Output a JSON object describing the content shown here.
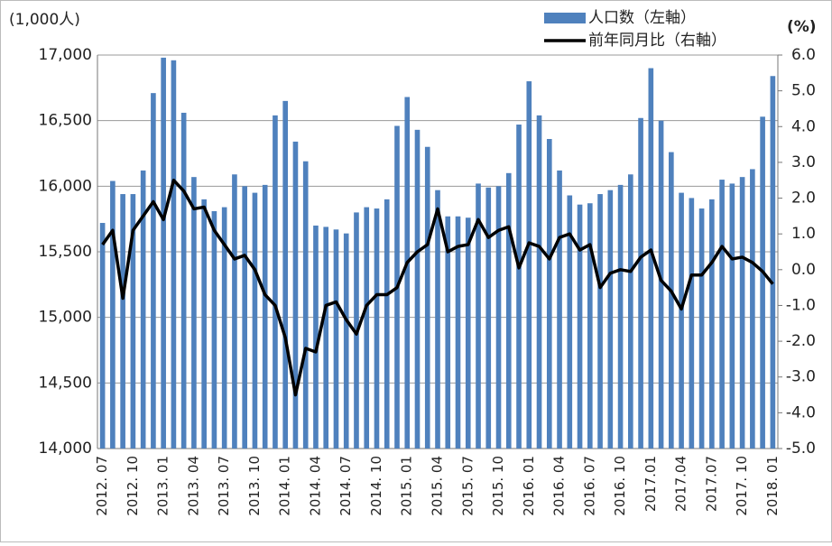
{
  "chart_data": {
    "type": "bar",
    "y_axis_label": "(1,000人)",
    "y2_axis_label": "(%)",
    "categories": [
      "2012. 07",
      null,
      null,
      "2012. 10",
      null,
      null,
      "2013. 01",
      null,
      null,
      "2013. 04",
      null,
      null,
      "2013. 07",
      null,
      null,
      "2013. 10",
      null,
      null,
      "2014. 01",
      null,
      null,
      "2014. 04",
      null,
      null,
      "2014. 07",
      null,
      null,
      "2014. 10",
      null,
      null,
      "2015. 01",
      null,
      null,
      "2015. 04",
      null,
      null,
      "2015. 07",
      null,
      null,
      "2015. 10",
      null,
      null,
      "2016. 01",
      null,
      null,
      "2016. 04",
      null,
      null,
      "2016. 07",
      null,
      null,
      "2016. 10",
      null,
      null,
      "2017.01",
      null,
      null,
      "2017.04",
      null,
      null,
      "2017.07",
      null,
      null,
      "2017. 10",
      null,
      null,
      "2018. 01"
    ],
    "series": [
      {
        "name": "人口数（左軸）",
        "type": "bar",
        "color": "#4f81bd",
        "values": [
          15720,
          16040,
          15940,
          15940,
          16120,
          16710,
          16980,
          16960,
          16560,
          16070,
          15900,
          15810,
          15840,
          16090,
          16000,
          15950,
          16010,
          16540,
          16650,
          16340,
          16190,
          15700,
          15690,
          15670,
          15640,
          15800,
          15840,
          15830,
          15900,
          16460,
          16680,
          16430,
          16300,
          15970,
          15770,
          15770,
          15760,
          16020,
          15990,
          16000,
          16100,
          16470,
          16800,
          16540,
          16360,
          16120,
          15930,
          15860,
          15870,
          15940,
          15970,
          16010,
          16090,
          16520,
          16900,
          16500,
          16260,
          15950,
          15910,
          15830,
          15900,
          16050,
          16020,
          16070,
          16130,
          16530,
          16840
        ]
      },
      {
        "name": "前年同月比（右軸）",
        "type": "line",
        "axis": "y2",
        "color": "#000000",
        "values": [
          0.7,
          1.1,
          -0.8,
          1.1,
          1.5,
          1.9,
          1.4,
          2.5,
          2.2,
          1.7,
          1.75,
          1.1,
          0.7,
          0.3,
          0.4,
          0.0,
          -0.7,
          -1.0,
          -1.9,
          -3.5,
          -2.2,
          -2.3,
          -1.0,
          -0.9,
          -1.4,
          -1.8,
          -1.0,
          -0.7,
          -0.7,
          -0.5,
          0.2,
          0.5,
          0.7,
          1.7,
          0.5,
          0.65,
          0.7,
          1.4,
          0.9,
          1.1,
          1.2,
          0.05,
          0.75,
          0.65,
          0.3,
          0.9,
          1.0,
          0.55,
          0.7,
          -0.5,
          -0.1,
          0.0,
          -0.05,
          0.35,
          0.55,
          -0.3,
          -0.6,
          -1.1,
          -0.15,
          -0.15,
          0.2,
          0.65,
          0.3,
          0.35,
          0.2,
          -0.05,
          -0.4
        ]
      }
    ],
    "ylim": [
      14000,
      17000
    ],
    "yticks": [
      {
        "value": 14000,
        "label": "14,000"
      },
      {
        "value": 14500,
        "label": "14,500"
      },
      {
        "value": 15000,
        "label": "15,000"
      },
      {
        "value": 15500,
        "label": "15,500"
      },
      {
        "value": 16000,
        "label": "16,000"
      },
      {
        "value": 16500,
        "label": "16,500"
      },
      {
        "value": 17000,
        "label": "17,000"
      }
    ],
    "y2lim": [
      -5,
      6
    ],
    "y2ticks": [
      {
        "value": -5,
        "label": "-5.0"
      },
      {
        "value": -4,
        "label": "-4.0"
      },
      {
        "value": -3,
        "label": "-3.0"
      },
      {
        "value": -2,
        "label": "-2.0"
      },
      {
        "value": -1,
        "label": "-1.0"
      },
      {
        "value": 0,
        "label": "0.0"
      },
      {
        "value": 1,
        "label": "1.0"
      },
      {
        "value": 2,
        "label": "2.0"
      },
      {
        "value": 3,
        "label": "3.0"
      },
      {
        "value": 4,
        "label": "4.0"
      },
      {
        "value": 5,
        "label": "5.0"
      },
      {
        "value": 6,
        "label": "6.0"
      }
    ],
    "grid": true,
    "legend": "top-right"
  }
}
